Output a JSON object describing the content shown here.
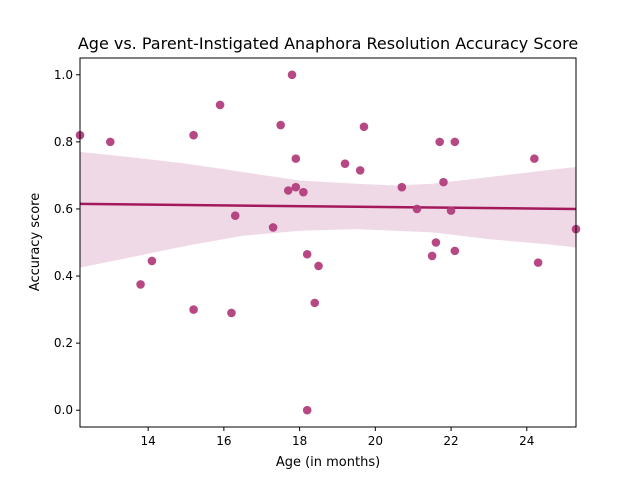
{
  "chart_data": {
    "type": "scatter",
    "title": "Age vs. Parent-Instigated Anaphora Resolution Accuracy Score",
    "xlabel": "Age (in months)",
    "ylabel": "Accuracy score",
    "xlim": [
      12.2,
      25.3
    ],
    "ylim": [
      -0.05,
      1.05
    ],
    "xticks": [
      14,
      16,
      18,
      20,
      22,
      24
    ],
    "yticks": [
      0.0,
      0.2,
      0.4,
      0.6,
      0.8,
      1.0
    ],
    "xtick_labels": [
      "14",
      "16",
      "18",
      "20",
      "22",
      "24"
    ],
    "ytick_labels": [
      "0.0",
      "0.2",
      "0.4",
      "0.6",
      "0.8",
      "1.0"
    ],
    "grid": false,
    "point_color": "#b03a7a",
    "line_color": "#a3195b",
    "band_color": "#f0d9e6",
    "points": [
      {
        "x": 12.2,
        "y": 0.82
      },
      {
        "x": 13.0,
        "y": 0.8
      },
      {
        "x": 13.8,
        "y": 0.375
      },
      {
        "x": 14.1,
        "y": 0.445
      },
      {
        "x": 15.2,
        "y": 0.82
      },
      {
        "x": 15.2,
        "y": 0.3
      },
      {
        "x": 15.9,
        "y": 0.91
      },
      {
        "x": 16.2,
        "y": 0.29
      },
      {
        "x": 16.3,
        "y": 0.58
      },
      {
        "x": 17.3,
        "y": 0.545
      },
      {
        "x": 17.5,
        "y": 0.85
      },
      {
        "x": 17.7,
        "y": 0.655
      },
      {
        "x": 17.8,
        "y": 1.0
      },
      {
        "x": 17.9,
        "y": 0.75
      },
      {
        "x": 17.9,
        "y": 0.665
      },
      {
        "x": 18.1,
        "y": 0.65
      },
      {
        "x": 18.2,
        "y": 0.465
      },
      {
        "x": 18.2,
        "y": 0.0
      },
      {
        "x": 18.4,
        "y": 0.32
      },
      {
        "x": 18.5,
        "y": 0.43
      },
      {
        "x": 19.2,
        "y": 0.735
      },
      {
        "x": 19.6,
        "y": 0.715
      },
      {
        "x": 19.7,
        "y": 0.845
      },
      {
        "x": 20.7,
        "y": 0.665
      },
      {
        "x": 21.1,
        "y": 0.6
      },
      {
        "x": 21.5,
        "y": 0.46
      },
      {
        "x": 21.6,
        "y": 0.5
      },
      {
        "x": 21.7,
        "y": 0.8
      },
      {
        "x": 21.8,
        "y": 0.68
      },
      {
        "x": 22.0,
        "y": 0.595
      },
      {
        "x": 22.1,
        "y": 0.8
      },
      {
        "x": 22.1,
        "y": 0.475
      },
      {
        "x": 24.2,
        "y": 0.75
      },
      {
        "x": 24.3,
        "y": 0.44
      },
      {
        "x": 25.3,
        "y": 0.54
      }
    ],
    "regression": {
      "x": [
        12.2,
        25.3
      ],
      "y": [
        0.615,
        0.6
      ]
    },
    "confidence_band": {
      "x": [
        12.2,
        13.5,
        15.0,
        16.5,
        18.0,
        19.5,
        20.5,
        21.5,
        23.0,
        24.5,
        25.3
      ],
      "lower": [
        0.425,
        0.455,
        0.49,
        0.52,
        0.535,
        0.54,
        0.535,
        0.53,
        0.51,
        0.495,
        0.485
      ],
      "upper": [
        0.77,
        0.755,
        0.735,
        0.71,
        0.685,
        0.675,
        0.67,
        0.675,
        0.695,
        0.715,
        0.725
      ]
    }
  }
}
